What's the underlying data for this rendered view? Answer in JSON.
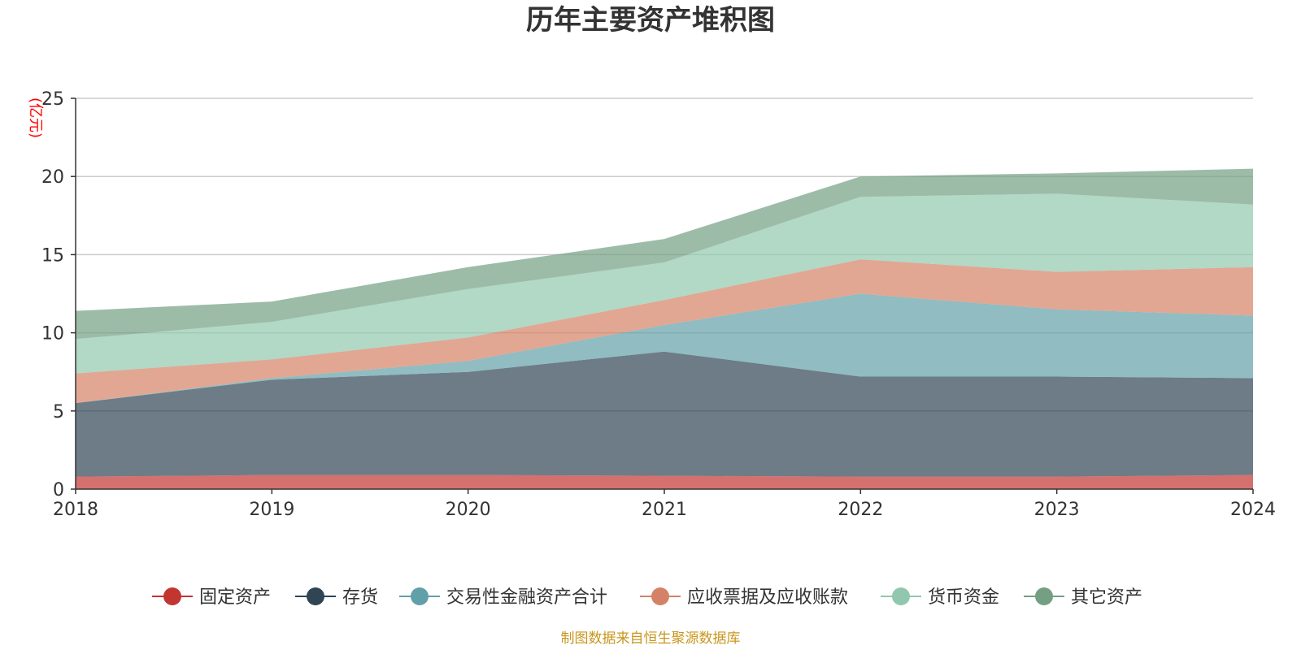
{
  "chart_data": {
    "type": "area",
    "stacked": true,
    "title": "历年主要资产堆积图",
    "unit_label": "(亿元)",
    "xlabel": "",
    "ylabel": "",
    "x": [
      "2018",
      "2019",
      "2020",
      "2021",
      "2022",
      "2023",
      "2024"
    ],
    "ylim": [
      0,
      25
    ],
    "yticks": [
      0,
      5,
      10,
      15,
      20,
      25
    ],
    "grid": true,
    "legend_position": "bottom",
    "series": [
      {
        "name": "固定资产",
        "color": "#c23531",
        "values": [
          0.8,
          0.9,
          0.9,
          0.85,
          0.8,
          0.8,
          0.9
        ]
      },
      {
        "name": "存货",
        "color": "#2f4554",
        "values": [
          4.7,
          6.1,
          6.6,
          7.95,
          6.4,
          6.4,
          6.2
        ]
      },
      {
        "name": "交易性金融资产合计",
        "color": "#61a0a8",
        "values": [
          0.0,
          0.1,
          0.7,
          1.7,
          5.3,
          4.3,
          4.0
        ]
      },
      {
        "name": "应收票据及应收账款",
        "color": "#d48265",
        "values": [
          1.9,
          1.2,
          1.5,
          1.6,
          2.2,
          2.4,
          3.1
        ]
      },
      {
        "name": "货币资金",
        "color": "#91c7ae",
        "values": [
          2.2,
          2.4,
          3.1,
          2.4,
          4.0,
          5.0,
          4.0
        ]
      },
      {
        "name": "其它资产",
        "color": "#749f83",
        "values": [
          1.8,
          1.3,
          1.4,
          1.5,
          1.3,
          1.3,
          2.3
        ]
      }
    ]
  },
  "source_text": "制图数据来自恒生聚源数据库"
}
